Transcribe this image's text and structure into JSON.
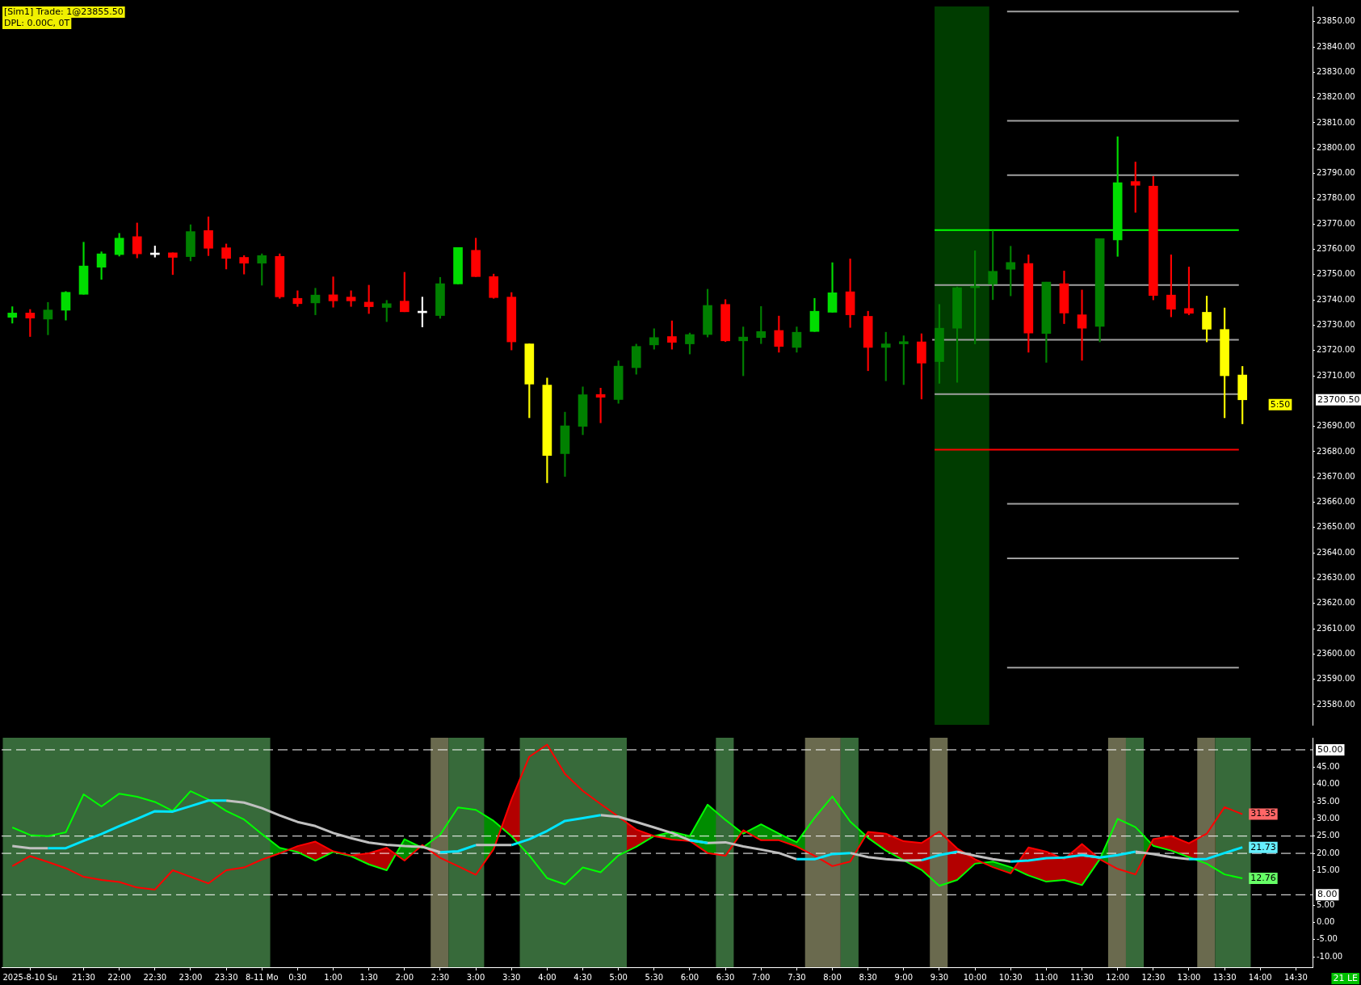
{
  "chart_data": [
    {
      "type": "candlestick",
      "x": [
        "2025-08-10T20:30",
        "2025-08-10T20:45",
        "2025-08-10T21:00",
        "2025-08-10T21:15",
        "2025-08-10T21:30",
        "2025-08-10T21:45",
        "2025-08-10T22:00",
        "2025-08-10T22:15",
        "2025-08-10T22:30",
        "2025-08-10T22:45",
        "2025-08-10T23:00",
        "2025-08-10T23:15",
        "2025-08-10T23:30",
        "2025-08-10T23:45",
        "2025-08-11T00:00",
        "2025-08-11T00:15",
        "2025-08-11T00:30",
        "2025-08-11T00:45",
        "2025-08-11T01:00",
        "2025-08-11T01:15",
        "2025-08-11T01:30",
        "2025-08-11T01:45",
        "2025-08-11T02:00",
        "2025-08-11T02:15",
        "2025-08-11T02:30",
        "2025-08-11T02:45",
        "2025-08-11T03:00",
        "2025-08-11T03:15",
        "2025-08-11T03:30",
        "2025-08-11T03:45",
        "2025-08-11T04:00",
        "2025-08-11T04:15",
        "2025-08-11T04:30",
        "2025-08-11T04:45",
        "2025-08-11T05:00",
        "2025-08-11T05:15",
        "2025-08-11T05:30",
        "2025-08-11T05:45",
        "2025-08-11T06:00",
        "2025-08-11T06:15",
        "2025-08-11T06:30",
        "2025-08-11T06:45",
        "2025-08-11T07:00",
        "2025-08-11T07:15",
        "2025-08-11T07:30",
        "2025-08-11T07:45",
        "2025-08-11T08:00",
        "2025-08-11T08:15",
        "2025-08-11T08:30",
        "2025-08-11T08:45",
        "2025-08-11T09:00",
        "2025-08-11T09:15",
        "2025-08-11T09:30",
        "2025-08-11T09:45",
        "2025-08-11T10:00",
        "2025-08-11T10:15",
        "2025-08-11T10:30",
        "2025-08-11T10:45",
        "2025-08-11T11:00",
        "2025-08-11T11:15",
        "2025-08-11T11:30",
        "2025-08-11T11:45",
        "2025-08-11T12:00",
        "2025-08-11T12:15",
        "2025-08-11T12:30",
        "2025-08-11T12:45",
        "2025-08-11T13:00",
        "2025-08-11T13:15",
        "2025-08-11T13:30",
        "2025-08-11T13:45"
      ],
      "ohlc": [
        [
          23733.1,
          23737.3,
          23730.8,
          23734.8
        ],
        [
          23734.8,
          23736.2,
          23725.5,
          23732.8
        ],
        [
          23732.4,
          23739.0,
          23726.2,
          23736.0
        ],
        [
          23735.9,
          23743.3,
          23732.0,
          23743.0
        ],
        [
          23742.2,
          23762.8,
          23742.2,
          23753.4
        ],
        [
          23752.9,
          23759.0,
          23748.1,
          23758.2
        ],
        [
          23757.9,
          23766.3,
          23757.3,
          23764.4
        ],
        [
          23765.0,
          23770.4,
          23756.6,
          23758.2
        ],
        [
          23757.9,
          23761.3,
          23756.9,
          23757.9
        ],
        [
          23758.6,
          23758.6,
          23750.0,
          23756.8
        ],
        [
          23757.1,
          23769.7,
          23755.4,
          23767.0
        ],
        [
          23767.4,
          23772.8,
          23757.5,
          23760.4
        ],
        [
          23760.6,
          23762.1,
          23752.2,
          23756.4
        ],
        [
          23756.8,
          23757.5,
          23750.2,
          23754.5
        ],
        [
          23754.5,
          23758.2,
          23745.8,
          23757.5
        ],
        [
          23757.2,
          23758.2,
          23740.6,
          23741.2
        ],
        [
          23740.6,
          23743.6,
          23737.4,
          23738.5
        ],
        [
          23738.8,
          23744.6,
          23734.1,
          23741.9
        ],
        [
          23742.0,
          23749.1,
          23737.1,
          23739.6
        ],
        [
          23741.1,
          23743.6,
          23737.4,
          23739.6
        ],
        [
          23739.1,
          23745.8,
          23734.6,
          23737.3
        ],
        [
          23737.0,
          23739.8,
          23731.4,
          23738.5
        ],
        [
          23739.5,
          23750.9,
          23735.3,
          23735.3
        ],
        [
          23734.9,
          23741.1,
          23729.3,
          23734.9
        ],
        [
          23733.8,
          23748.9,
          23732.7,
          23746.4
        ],
        [
          23746.3,
          23760.7,
          23746.3,
          23760.7
        ],
        [
          23759.6,
          23764.4,
          23749.2,
          23749.2
        ],
        [
          23749.2,
          23750.2,
          23740.6,
          23740.9
        ],
        [
          23741.1,
          23742.9,
          23720.2,
          23723.4
        ],
        [
          23722.6,
          23722.6,
          23693.4,
          23706.7
        ],
        [
          23706.3,
          23709.1,
          23667.7,
          23678.5
        ],
        [
          23679.2,
          23695.6,
          23670.2,
          23690.2
        ],
        [
          23690.0,
          23705.6,
          23686.7,
          23702.5
        ],
        [
          23702.6,
          23705.1,
          23691.4,
          23701.5
        ],
        [
          23700.6,
          23715.9,
          23699.1,
          23713.8
        ],
        [
          23713.2,
          23722.5,
          23710.6,
          23721.6
        ],
        [
          23722.2,
          23728.6,
          23720.5,
          23725.1
        ],
        [
          23725.5,
          23731.7,
          23720.5,
          23723.2
        ],
        [
          23722.6,
          23726.9,
          23718.6,
          23726.3
        ],
        [
          23726.3,
          23744.2,
          23725.3,
          23737.8
        ],
        [
          23738.2,
          23740.1,
          23723.5,
          23723.8
        ],
        [
          23723.8,
          23729.3,
          23710.0,
          23725.3
        ],
        [
          23725.1,
          23737.4,
          23722.7,
          23727.5
        ],
        [
          23727.9,
          23733.6,
          23719.3,
          23721.6
        ],
        [
          23721.2,
          23729.3,
          23719.3,
          23727.2
        ],
        [
          23727.5,
          23740.6,
          23727.5,
          23735.5
        ],
        [
          23735.1,
          23754.7,
          23735.1,
          23742.8
        ],
        [
          23743.2,
          23756.2,
          23729.1,
          23734.1
        ],
        [
          23733.5,
          23735.5,
          23712.0,
          23721.2
        ],
        [
          23721.2,
          23727.2,
          23708.0,
          23722.6
        ],
        [
          23722.6,
          23725.8,
          23706.5,
          23723.5
        ],
        [
          23723.4,
          23726.6,
          23700.8,
          23715.0
        ],
        [
          23715.6,
          23738.2,
          23707.0,
          23728.8
        ],
        [
          23728.8,
          23745.1,
          23707.4,
          23744.8
        ],
        [
          23744.8,
          23759.4,
          23722.6,
          23745.4
        ],
        [
          23746.2,
          23767.3,
          23740.1,
          23751.3
        ],
        [
          23752.1,
          23761.2,
          23741.6,
          23754.8
        ],
        [
          23754.4,
          23757.8,
          23719.3,
          23726.9
        ],
        [
          23726.7,
          23747.0,
          23715.3,
          23747.0
        ],
        [
          23746.4,
          23751.4,
          23730.6,
          23734.8
        ],
        [
          23734.1,
          23743.9,
          23716.1,
          23728.8
        ],
        [
          23729.5,
          23764.2,
          23723.4,
          23764.2
        ],
        [
          23763.7,
          23804.5,
          23757.2,
          23786.3
        ],
        [
          23786.8,
          23794.5,
          23774.6,
          23785.3
        ],
        [
          23785.0,
          23788.8,
          23740.0,
          23741.7
        ],
        [
          23741.9,
          23757.8,
          23733.3,
          23736.3
        ],
        [
          23736.6,
          23753.0,
          23734.1,
          23734.7
        ],
        [
          23735.1,
          23741.5,
          23723.4,
          23728.4
        ],
        [
          23728.3,
          23736.8,
          23693.4,
          23710.0
        ],
        [
          23710.3,
          23713.7,
          23691.0,
          23700.5
        ]
      ],
      "colors": [
        "#00dd00",
        "#ff0000",
        "#008000",
        "#00dd00",
        "#00dd00",
        "#00dd00",
        "#00dd00",
        "#ff0000",
        "#ffffff",
        "#ff0000",
        "#008000",
        "#ff0000",
        "#ff0000",
        "#ff0000",
        "#008000",
        "#ff0000",
        "#ff0000",
        "#008000",
        "#ff0000",
        "#ff0000",
        "#ff0000",
        "#008000",
        "#ff0000",
        "#ffffff",
        "#008000",
        "#00dd00",
        "#ff0000",
        "#ff0000",
        "#ff0000",
        "#ffff00",
        "#ffff00",
        "#008000",
        "#008000",
        "#ff0000",
        "#008000",
        "#008000",
        "#008000",
        "#ff0000",
        "#008000",
        "#008000",
        "#ff0000",
        "#008000",
        "#008000",
        "#ff0000",
        "#008000",
        "#00dd00",
        "#00dd00",
        "#ff0000",
        "#ff0000",
        "#008000",
        "#008000",
        "#ff0000",
        "#008000",
        "#008000",
        "#008000",
        "#008000",
        "#008000",
        "#ff0000",
        "#008000",
        "#ff0000",
        "#ff0000",
        "#008000",
        "#00dd00",
        "#ff0000",
        "#ff0000",
        "#ff0000",
        "#ff0000",
        "#ffff00",
        "#ffff00",
        "#ffff00"
      ],
      "series": [
        {
          "type": "line",
          "x": [
            "2025-08-11T10:27",
            "2025-08-11T13:42"
          ],
          "values": [
            23854.0,
            23854.0
          ],
          "color": "#a0a0a0"
        },
        {
          "type": "line",
          "x": [
            "2025-08-11T10:27",
            "2025-08-11T13:42"
          ],
          "values": [
            23810.8,
            23810.8
          ],
          "color": "#a0a0a0"
        },
        {
          "type": "line",
          "x": [
            "2025-08-11T10:27",
            "2025-08-11T13:42"
          ],
          "values": [
            23789.3,
            23789.3
          ],
          "color": "#a0a0a0"
        },
        {
          "type": "line",
          "x": [
            "2025-08-11T09:26",
            "2025-08-11T13:42"
          ],
          "values": [
            23767.6,
            23767.6
          ],
          "color": "#00ff00"
        },
        {
          "type": "line",
          "x": [
            "2025-08-11T09:26",
            "2025-08-11T13:42"
          ],
          "values": [
            23745.9,
            23745.9
          ],
          "color": "#a0a0a0"
        },
        {
          "type": "line",
          "x": [
            "2025-08-11T09:24",
            "2025-08-11T13:42"
          ],
          "values": [
            23724.2,
            23724.2
          ],
          "color": "#a0a0a0"
        },
        {
          "type": "line",
          "x": [
            "2025-08-11T09:26",
            "2025-08-11T13:42"
          ],
          "values": [
            23702.7,
            23702.7
          ],
          "color": "#a0a0a0"
        },
        {
          "type": "line",
          "x": [
            "2025-08-11T09:26",
            "2025-08-11T13:42"
          ],
          "values": [
            23680.8,
            23680.8
          ],
          "color": "#ff0000"
        },
        {
          "type": "line",
          "x": [
            "2025-08-11T10:27",
            "2025-08-11T13:42"
          ],
          "values": [
            23659.4,
            23659.4
          ],
          "color": "#a0a0a0"
        },
        {
          "type": "line",
          "x": [
            "2025-08-11T10:27",
            "2025-08-11T13:42"
          ],
          "values": [
            23637.8,
            23637.8
          ],
          "color": "#a0a0a0"
        },
        {
          "type": "line",
          "x": [
            "2025-08-11T10:27",
            "2025-08-11T13:42"
          ],
          "values": [
            23594.6,
            23594.6
          ],
          "color": "#a0a0a0"
        }
      ],
      "bands": [
        {
          "axis": "x",
          "from": "2025-08-11T09:26",
          "to": "2025-08-11T10:12",
          "color": "#003c00"
        }
      ],
      "xlim": [
        "2025-08-10T20:21",
        "2025-08-11T14:44"
      ],
      "ylim": [
        23572,
        23856
      ],
      "yticks": [
        {
          "value": 23580,
          "label": "23580.00"
        },
        {
          "value": 23590,
          "label": "23590.00"
        },
        {
          "value": 23600,
          "label": "23600.00"
        },
        {
          "value": 23610,
          "label": "23610.00"
        },
        {
          "value": 23620,
          "label": "23620.00"
        },
        {
          "value": 23630,
          "label": "23630.00"
        },
        {
          "value": 23640,
          "label": "23640.00"
        },
        {
          "value": 23650,
          "label": "23650.00"
        },
        {
          "value": 23660,
          "label": "23660.00"
        },
        {
          "value": 23670,
          "label": "23670.00"
        },
        {
          "value": 23680,
          "label": "23680.00"
        },
        {
          "value": 23690,
          "label": "23690.00"
        },
        {
          "value": 23710,
          "label": "23710.00"
        },
        {
          "value": 23720,
          "label": "23720.00"
        },
        {
          "value": 23730,
          "label": "23730.00"
        },
        {
          "value": 23740,
          "label": "23740.00"
        },
        {
          "value": 23750,
          "label": "23750.00"
        },
        {
          "value": 23760,
          "label": "23760.00"
        },
        {
          "value": 23770,
          "label": "23770.00"
        },
        {
          "value": 23780,
          "label": "23780.00"
        },
        {
          "value": 23790,
          "label": "23790.00"
        },
        {
          "value": 23800,
          "label": "23800.00"
        },
        {
          "value": 23810,
          "label": "23810.00"
        },
        {
          "value": 23820,
          "label": "23820.00"
        },
        {
          "value": 23830,
          "label": "23830.00"
        },
        {
          "value": 23840,
          "label": "23840.00"
        },
        {
          "value": 23850,
          "label": "23850.00"
        }
      ],
      "tick_labels": "y",
      "annotations": [
        "[Sim1] Trade: 1@23855.50",
        "DPL: 0.00C, 0T",
        "5:50",
        "23700.50"
      ]
    },
    {
      "type": "line",
      "x": [
        "2025-08-10T20:30",
        "2025-08-10T20:45",
        "2025-08-10T21:00",
        "2025-08-10T21:15",
        "2025-08-10T21:30",
        "2025-08-10T21:45",
        "2025-08-10T22:00",
        "2025-08-10T22:15",
        "2025-08-10T22:30",
        "2025-08-10T22:45",
        "2025-08-10T23:00",
        "2025-08-10T23:15",
        "2025-08-10T23:30",
        "2025-08-10T23:45",
        "2025-08-11T00:00",
        "2025-08-11T00:15",
        "2025-08-11T00:30",
        "2025-08-11T00:45",
        "2025-08-11T01:00",
        "2025-08-11T01:15",
        "2025-08-11T01:30",
        "2025-08-11T01:45",
        "2025-08-11T02:00",
        "2025-08-11T02:15",
        "2025-08-11T02:30",
        "2025-08-11T02:45",
        "2025-08-11T03:00",
        "2025-08-11T03:15",
        "2025-08-11T03:30",
        "2025-08-11T03:45",
        "2025-08-11T04:00",
        "2025-08-11T04:15",
        "2025-08-11T04:30",
        "2025-08-11T04:45",
        "2025-08-11T05:00",
        "2025-08-11T05:15",
        "2025-08-11T05:30",
        "2025-08-11T05:45",
        "2025-08-11T06:00",
        "2025-08-11T06:15",
        "2025-08-11T06:30",
        "2025-08-11T06:45",
        "2025-08-11T07:00",
        "2025-08-11T07:15",
        "2025-08-11T07:30",
        "2025-08-11T07:45",
        "2025-08-11T08:00",
        "2025-08-11T08:15",
        "2025-08-11T08:30",
        "2025-08-11T08:45",
        "2025-08-11T09:00",
        "2025-08-11T09:15",
        "2025-08-11T09:30",
        "2025-08-11T09:45",
        "2025-08-11T10:00",
        "2025-08-11T10:15",
        "2025-08-11T10:30",
        "2025-08-11T10:45",
        "2025-08-11T11:00",
        "2025-08-11T11:15",
        "2025-08-11T11:30",
        "2025-08-11T11:45",
        "2025-08-11T12:00",
        "2025-08-11T12:15",
        "2025-08-11T12:30",
        "2025-08-11T12:45",
        "2025-08-11T13:00",
        "2025-08-11T13:15",
        "2025-08-11T13:30",
        "2025-08-11T13:45"
      ],
      "series": [
        {
          "color": "#00ff00",
          "values": [
            27.5,
            25.3,
            25.0,
            26.1,
            37.1,
            33.6,
            37.3,
            36.4,
            34.9,
            32.3,
            38.0,
            35.6,
            32.3,
            29.8,
            25.6,
            21.6,
            20.4,
            17.9,
            20.4,
            19.2,
            16.8,
            15.1,
            24.1,
            21.6,
            25.4,
            33.3,
            32.6,
            29.4,
            25.0,
            19.4,
            12.8,
            11.0,
            15.9,
            14.5,
            19.4,
            21.9,
            25.0,
            26.2,
            25.0,
            34.1,
            29.7,
            25.7,
            28.4,
            25.7,
            23.2,
            30.3,
            36.5,
            29.2,
            24.5,
            20.8,
            18.0,
            15.2,
            10.6,
            12.3,
            17.0,
            17.6,
            16.0,
            13.6,
            11.8,
            12.3,
            10.8,
            18.3,
            30.0,
            27.6,
            22.2,
            20.8,
            18.9,
            17.0,
            13.9,
            12.76
          ],
          "value_labels": [
            null,
            null,
            null,
            null,
            null,
            null,
            null,
            null,
            null,
            null,
            null,
            null,
            null,
            null,
            null,
            null,
            null,
            null,
            null,
            null,
            null,
            null,
            null,
            null,
            null,
            null,
            null,
            null,
            null,
            null,
            null,
            null,
            null,
            null,
            null,
            null,
            null,
            null,
            null,
            null,
            null,
            null,
            null,
            null,
            null,
            null,
            null,
            null,
            null,
            null,
            null,
            null,
            null,
            null,
            null,
            null,
            null,
            null,
            null,
            null,
            null,
            null,
            null,
            null,
            null,
            null,
            null,
            null,
            null,
            "12.76"
          ]
        },
        {
          "color": "#ff0000",
          "values": [
            16.3,
            19.2,
            17.5,
            15.7,
            13.2,
            12.3,
            11.7,
            10.1,
            9.5,
            15.1,
            13.2,
            11.3,
            15.1,
            15.9,
            18.2,
            20.0,
            22.1,
            23.4,
            20.6,
            19.4,
            20.0,
            21.6,
            17.9,
            22.4,
            18.7,
            16.3,
            13.8,
            21.2,
            35.6,
            48.0,
            51.5,
            43.0,
            38.1,
            34.3,
            30.6,
            26.9,
            25.0,
            24.0,
            23.6,
            20.1,
            19.3,
            26.7,
            23.8,
            23.8,
            22.0,
            19.3,
            16.3,
            17.6,
            26.2,
            25.7,
            23.5,
            23.0,
            26.3,
            21.4,
            18.3,
            16.0,
            14.2,
            21.7,
            20.5,
            18.3,
            22.7,
            18.3,
            15.5,
            13.9,
            24.1,
            25.0,
            22.9,
            25.7,
            33.4,
            31.35
          ],
          "value_labels": [
            null,
            null,
            null,
            null,
            null,
            null,
            null,
            null,
            null,
            null,
            null,
            null,
            null,
            null,
            null,
            null,
            null,
            null,
            null,
            null,
            null,
            null,
            null,
            null,
            null,
            null,
            null,
            null,
            null,
            null,
            null,
            null,
            null,
            null,
            null,
            null,
            null,
            null,
            null,
            null,
            null,
            null,
            null,
            null,
            null,
            null,
            null,
            null,
            null,
            null,
            null,
            null,
            null,
            null,
            null,
            null,
            null,
            null,
            null,
            null,
            null,
            null,
            null,
            null,
            null,
            null,
            null,
            null,
            null,
            "31.35"
          ]
        },
        {
          "color": "#c0c0c0",
          "values": [
            22.1,
            21.5,
            21.5,
            null,
            null,
            null,
            null,
            null,
            null,
            null,
            null,
            null,
            35.3,
            34.7,
            33.1,
            31.0,
            29.1,
            27.9,
            25.9,
            24.4,
            23.1,
            22.5,
            22.1,
            21.9,
            20.3,
            null,
            22.4,
            22.4,
            22.4,
            null,
            null,
            null,
            null,
            31.1,
            30.6,
            29.1,
            27.5,
            25.9,
            23.8,
            23.0,
            23.2,
            22.0,
            21.1,
            20.1,
            18.3,
            null,
            null,
            20.1,
            18.9,
            18.3,
            17.9,
            18.0,
            null,
            20.5,
            19.3,
            18.3,
            17.6,
            null,
            null,
            null,
            19.5,
            18.8,
            null,
            20.5,
            19.8,
            18.9,
            18.3,
            null,
            null,
            null
          ]
        },
        {
          "color": "#00e5ff",
          "values": [
            null,
            null,
            21.5,
            21.5,
            23.6,
            25.6,
            27.9,
            30.0,
            32.2,
            32.1,
            33.7,
            35.3,
            35.3,
            null,
            null,
            null,
            null,
            null,
            null,
            null,
            null,
            null,
            null,
            null,
            20.3,
            20.6,
            22.4,
            null,
            22.4,
            24.1,
            26.5,
            29.4,
            30.2,
            31.1,
            null,
            null,
            null,
            null,
            23.8,
            23.0,
            null,
            null,
            null,
            null,
            18.3,
            18.3,
            19.8,
            20.1,
            null,
            null,
            null,
            18.0,
            19.5,
            20.5,
            null,
            null,
            17.6,
            17.9,
            18.6,
            18.8,
            19.5,
            18.8,
            19.5,
            20.5,
            null,
            null,
            18.3,
            18.4,
            20.1,
            21.73
          ],
          "value_labels": [
            null,
            null,
            null,
            null,
            null,
            null,
            null,
            null,
            null,
            null,
            null,
            null,
            null,
            null,
            null,
            null,
            null,
            null,
            null,
            null,
            null,
            null,
            null,
            null,
            null,
            null,
            null,
            null,
            null,
            null,
            null,
            null,
            null,
            null,
            null,
            null,
            null,
            null,
            null,
            null,
            null,
            null,
            null,
            null,
            null,
            null,
            null,
            null,
            null,
            null,
            null,
            null,
            null,
            null,
            null,
            null,
            null,
            null,
            null,
            null,
            null,
            null,
            null,
            null,
            null,
            null,
            null,
            null,
            null,
            "21.73"
          ]
        }
      ],
      "bands": [
        {
          "axis": "x",
          "from": "2025-08-10T20:22",
          "to": "2025-08-11T00:07",
          "color": "#376a3a"
        },
        {
          "axis": "x",
          "from": "2025-08-11T02:22",
          "to": "2025-08-11T02:37",
          "color": "#6a6a4e"
        },
        {
          "axis": "x",
          "from": "2025-08-11T02:37",
          "to": "2025-08-11T03:07",
          "color": "#376a3a"
        },
        {
          "axis": "x",
          "from": "2025-08-11T03:37",
          "to": "2025-08-11T05:07",
          "color": "#376a3a"
        },
        {
          "axis": "x",
          "from": "2025-08-11T06:22",
          "to": "2025-08-11T06:37",
          "color": "#376a3a"
        },
        {
          "axis": "x",
          "from": "2025-08-11T07:37",
          "to": "2025-08-11T08:07",
          "color": "#6a6a4e"
        },
        {
          "axis": "x",
          "from": "2025-08-11T08:07",
          "to": "2025-08-11T08:22",
          "color": "#376a3a"
        },
        {
          "axis": "x",
          "from": "2025-08-11T09:22",
          "to": "2025-08-11T09:37",
          "color": "#6a6a4e"
        },
        {
          "axis": "x",
          "from": "2025-08-11T11:52",
          "to": "2025-08-11T12:07",
          "color": "#6a6a4e"
        },
        {
          "axis": "x",
          "from": "2025-08-11T12:07",
          "to": "2025-08-11T12:22",
          "color": "#376a3a"
        },
        {
          "axis": "x",
          "from": "2025-08-11T13:07",
          "to": "2025-08-11T13:22",
          "color": "#6a6a4e"
        },
        {
          "axis": "x",
          "from": "2025-08-11T13:22",
          "to": "2025-08-11T13:52",
          "color": "#376a3a"
        }
      ],
      "ref_lines": [
        {
          "axis": "y",
          "value": 50,
          "label": "50.00",
          "color": "#ffffff",
          "line_style": "dashed"
        },
        {
          "axis": "y",
          "value": 25,
          "color": "#ffffff",
          "line_style": "dashed"
        },
        {
          "axis": "y",
          "value": 20,
          "color": "#ffffff",
          "line_style": "dashed"
        },
        {
          "axis": "y",
          "value": 8,
          "label": "8.00",
          "color": "#ffffff",
          "line_style": "dashed"
        }
      ],
      "xlim": [
        "2025-08-10T20:21",
        "2025-08-11T14:44"
      ],
      "xticks": [
        {
          "value": "2025-08-10T20:45",
          "label": "2025-8-10 Su"
        },
        {
          "value": "2025-08-10T21:30",
          "label": "21:30"
        },
        {
          "value": "2025-08-10T22:00",
          "label": "22:00"
        },
        {
          "value": "2025-08-10T22:30",
          "label": "22:30"
        },
        {
          "value": "2025-08-10T23:00",
          "label": "23:00"
        },
        {
          "value": "2025-08-10T23:30",
          "label": "23:30"
        },
        {
          "value": "2025-08-11T00:00",
          "label": "8-11 Mo"
        },
        {
          "value": "2025-08-11T00:30",
          "label": "0:30"
        },
        {
          "value": "2025-08-11T01:00",
          "label": "1:00"
        },
        {
          "value": "2025-08-11T01:30",
          "label": "1:30"
        },
        {
          "value": "2025-08-11T02:00",
          "label": "2:00"
        },
        {
          "value": "2025-08-11T02:30",
          "label": "2:30"
        },
        {
          "value": "2025-08-11T03:00",
          "label": "3:00"
        },
        {
          "value": "2025-08-11T03:30",
          "label": "3:30"
        },
        {
          "value": "2025-08-11T04:00",
          "label": "4:00"
        },
        {
          "value": "2025-08-11T04:30",
          "label": "4:30"
        },
        {
          "value": "2025-08-11T05:00",
          "label": "5:00"
        },
        {
          "value": "2025-08-11T05:30",
          "label": "5:30"
        },
        {
          "value": "2025-08-11T06:00",
          "label": "6:00"
        },
        {
          "value": "2025-08-11T06:30",
          "label": "6:30"
        },
        {
          "value": "2025-08-11T07:00",
          "label": "7:00"
        },
        {
          "value": "2025-08-11T07:30",
          "label": "7:30"
        },
        {
          "value": "2025-08-11T08:00",
          "label": "8:00"
        },
        {
          "value": "2025-08-11T08:30",
          "label": "8:30"
        },
        {
          "value": "2025-08-11T09:00",
          "label": "9:00"
        },
        {
          "value": "2025-08-11T09:30",
          "label": "9:30"
        },
        {
          "value": "2025-08-11T10:00",
          "label": "10:00"
        },
        {
          "value": "2025-08-11T10:30",
          "label": "10:30"
        },
        {
          "value": "2025-08-11T11:00",
          "label": "11:00"
        },
        {
          "value": "2025-08-11T11:30",
          "label": "11:30"
        },
        {
          "value": "2025-08-11T12:00",
          "label": "12:00"
        },
        {
          "value": "2025-08-11T12:30",
          "label": "12:30"
        },
        {
          "value": "2025-08-11T13:00",
          "label": "13:00"
        },
        {
          "value": "2025-08-11T13:30",
          "label": "13:30"
        },
        {
          "value": "2025-08-11T14:00",
          "label": "14:00"
        },
        {
          "value": "2025-08-11T14:30",
          "label": "14:30"
        }
      ],
      "ylim": [
        -13,
        53.5
      ],
      "yticks": [
        {
          "value": 45,
          "label": "45.00"
        },
        {
          "value": 40,
          "label": "40.00"
        },
        {
          "value": 35,
          "label": "35.00"
        },
        {
          "value": 30,
          "label": "30.00"
        },
        {
          "value": 25,
          "label": "25.00"
        },
        {
          "value": 20,
          "label": "20.00"
        },
        {
          "value": 15,
          "label": "15.00"
        },
        {
          "value": 5,
          "label": "5.00"
        },
        {
          "value": 0,
          "label": "0.00"
        },
        {
          "value": -5,
          "label": "-5.00"
        },
        {
          "value": -10,
          "label": "-10.00"
        }
      ],
      "annotations": [
        "21 LE"
      ]
    }
  ]
}
